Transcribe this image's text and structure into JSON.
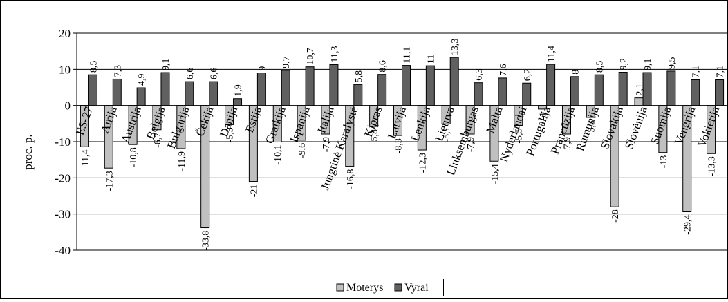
{
  "chart_data": {
    "type": "bar",
    "ylabel": "proc. p.",
    "ylim": [
      -40,
      20
    ],
    "yticks": [
      20,
      10,
      0,
      -10,
      -20,
      -30,
      -40
    ],
    "grid": true,
    "legend_position": "bottom-center",
    "categories": [
      "ES-27",
      "Airija",
      "Austrija",
      "Belgija",
      "Bulgarija",
      "Čekija",
      "Danija",
      "Estija",
      "Graikija",
      "Ispanija",
      "Italija",
      "Jungtinė Karalystė",
      "Kipras",
      "Latvija",
      "Lenkija",
      "Lietuva",
      "Liuksemburgas",
      "Malta",
      "Nyderlandai",
      "Portugalija",
      "Prancūzija",
      "Rumunija",
      "Slovakija",
      "Slovėnija",
      "Suomija",
      "Vengrija",
      "Vokietija"
    ],
    "series": [
      {
        "name": "Moterys",
        "color": "#c0c0c0",
        "values": [
          -11.4,
          -17.3,
          -10.8,
          -6.7,
          -11.9,
          -33.8,
          -5.3,
          -21,
          -10.1,
          -9.6,
          -7.9,
          -16.8,
          -5.8,
          -8.3,
          -12.3,
          -5.1,
          -7.9,
          -15.4,
          -5.5,
          -1,
          -7.9,
          -3.3,
          -28,
          2.1,
          -13,
          -29.4,
          -13.3
        ],
        "labels": [
          "-11,4",
          "-17,3",
          "-10,8",
          "-6,7",
          "-11,9",
          "-33,8",
          "-5,3",
          "-21",
          "-10,1",
          "-9,6",
          "-7,9",
          "-16,8",
          "-5,8",
          "-8,3",
          "-12,3",
          "-5,1",
          "-7,9",
          "-15,4",
          "-5,5",
          "-1",
          "-7,9",
          "-3,3",
          "-28",
          "2,1",
          "-13",
          "-29,4",
          "-13,3"
        ]
      },
      {
        "name": "Vyrai",
        "color": "#606060",
        "values": [
          8.5,
          7.3,
          4.9,
          9.1,
          6.6,
          6.6,
          1.9,
          9,
          9.7,
          10.7,
          11.3,
          5.8,
          8.6,
          11.1,
          11,
          13.3,
          6.3,
          7.6,
          6.2,
          11.4,
          8,
          8.5,
          9.2,
          9.1,
          9.5,
          7.1,
          7.1
        ],
        "labels": [
          "8,5",
          "7,3",
          "4,9",
          "9,1",
          "6,6",
          "6,6",
          "1,9",
          "9",
          "9,7",
          "10,7",
          "11,3",
          "5,8",
          "8,6",
          "11,1",
          "11",
          "13,3",
          "6,3",
          "7,6",
          "6,2",
          "11,4",
          "8",
          "8,5",
          "9,2",
          "9,1",
          "9,5",
          "7,1",
          "7,1"
        ]
      }
    ]
  }
}
